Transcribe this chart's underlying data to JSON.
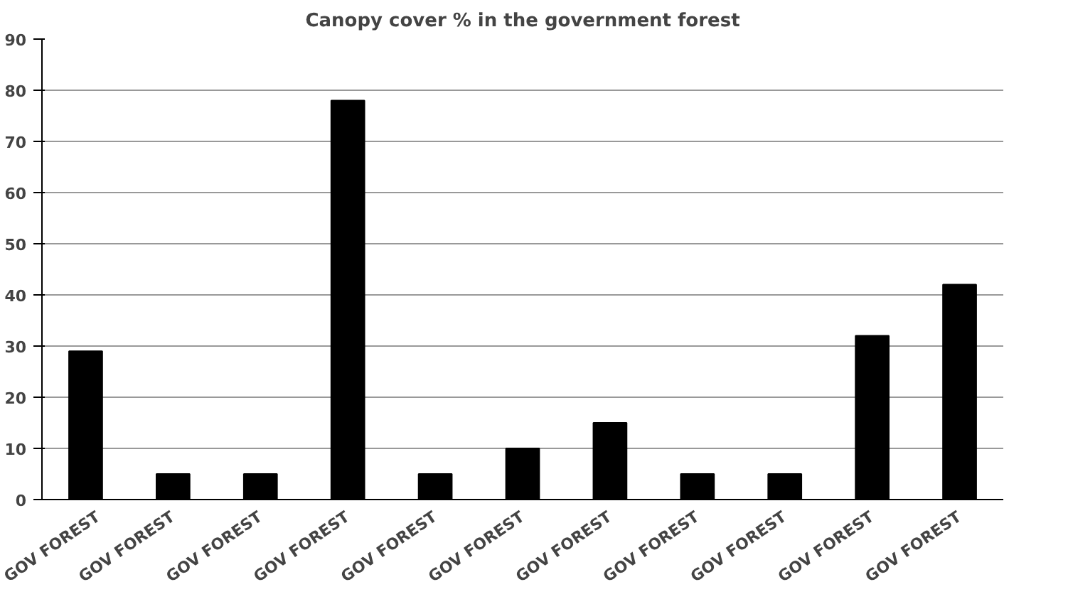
{
  "chart_data": {
    "type": "bar",
    "title": "Canopy cover % in the government forest",
    "categories": [
      "GOV FOREST",
      "GOV FOREST",
      "GOV FOREST",
      "GOV FOREST",
      "GOV FOREST",
      "GOV FOREST",
      "GOV FOREST",
      "GOV FOREST",
      "GOV FOREST",
      "GOV FOREST",
      "GOV FOREST"
    ],
    "values": [
      29,
      5,
      5,
      78,
      5,
      10,
      15,
      5,
      5,
      32,
      42
    ],
    "color": "#000000",
    "ylim": [
      0,
      90
    ],
    "yticks": [
      0,
      10,
      20,
      30,
      40,
      50,
      60,
      70,
      80,
      90
    ],
    "grid": "y"
  }
}
